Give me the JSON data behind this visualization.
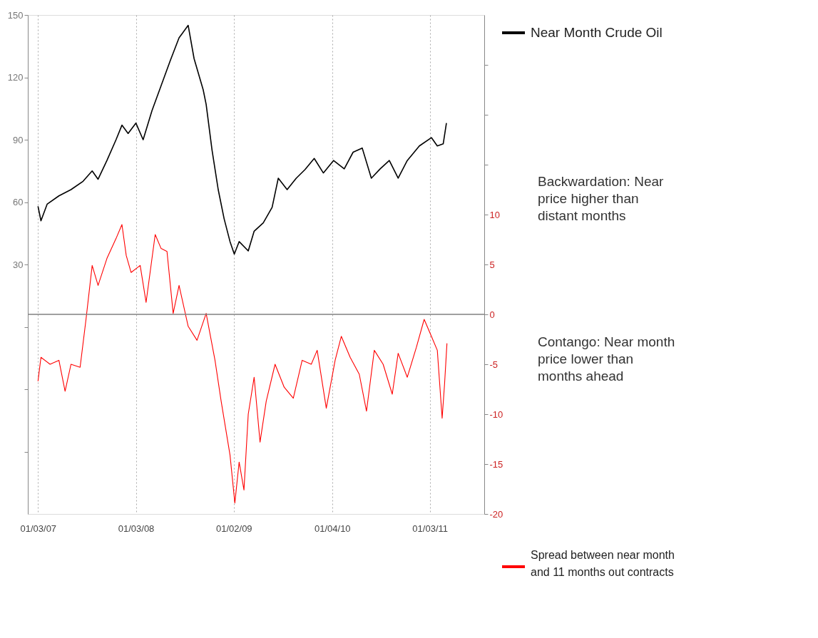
{
  "chart_data": {
    "type": "line",
    "annotations": [
      "Backwardation: Near price higher than distant months",
      "Contango: Near month price lower than months ahead"
    ],
    "xlim": [
      "2006-11-26",
      "2011-07-25"
    ],
    "xticks": [
      {
        "value": "2007-01-03",
        "label": "01/03/07"
      },
      {
        "value": "2008-01-03",
        "label": "01/03/08"
      },
      {
        "value": "2009-01-02",
        "label": "01/02/09"
      },
      {
        "value": "2010-01-04",
        "label": "01/04/10"
      },
      {
        "value": "2011-01-03",
        "label": "01/03/11"
      }
    ],
    "ylim": [
      -90,
      150
    ],
    "yticks": [
      150,
      120,
      90,
      60,
      30,
      {
        "value": 0,
        "label": null
      },
      {
        "value": -30,
        "label": null
      },
      {
        "value": -60,
        "label": null
      }
    ],
    "y2lim": [
      -20,
      30
    ],
    "y2ticks": [
      -20,
      -15,
      -10,
      -5,
      0,
      5,
      10,
      {
        "value": 15,
        "label": null
      },
      {
        "value": 20,
        "label": null
      },
      {
        "value": 25,
        "label": null
      }
    ],
    "series": [
      {
        "name": "Near Month Crude Oil",
        "color": "#000000",
        "x": [
          "2007-01-03",
          "2007-01-14",
          "2007-02-06",
          "2007-03-22",
          "2007-05-06",
          "2007-06-20",
          "2007-07-24",
          "2007-08-15",
          "2007-09-17",
          "2007-10-21",
          "2007-11-12",
          "2007-12-05",
          "2008-01-03",
          "2008-01-30",
          "2008-03-03",
          "2008-04-06",
          "2008-05-10",
          "2008-06-12",
          "2008-07-16",
          "2008-08-07",
          "2008-09-10",
          "2008-09-21",
          "2008-10-13",
          "2008-11-05",
          "2008-11-27",
          "2008-12-19",
          "2009-01-04",
          "2009-01-22",
          "2009-02-25",
          "2009-03-19",
          "2009-04-22",
          "2009-05-25",
          "2009-06-17",
          "2009-07-20",
          "2009-08-23",
          "2009-09-25",
          "2009-10-29",
          "2009-12-02",
          "2010-01-09",
          "2010-02-18",
          "2010-03-23",
          "2010-04-26",
          "2010-05-30",
          "2010-07-02",
          "2010-08-05",
          "2010-09-07",
          "2010-10-11",
          "2010-11-25",
          "2011-01-09",
          "2011-01-31",
          "2011-02-22",
          "2011-03-06"
        ],
        "values": [
          58,
          51,
          59,
          63,
          66,
          70,
          75,
          71,
          80,
          90,
          97,
          93,
          98,
          90,
          104,
          116,
          128,
          139,
          145,
          129,
          114,
          107,
          85,
          66,
          52,
          41,
          35,
          41,
          36.5,
          46,
          50,
          57.5,
          71.5,
          66,
          71.5,
          75.7,
          81,
          74,
          80,
          76,
          84,
          86,
          71.5,
          76,
          80,
          71.5,
          80,
          87,
          91,
          87,
          88,
          98
        ]
      },
      {
        "name": "Spread between near month and 11 months out contracts",
        "color": "#ff0000",
        "axis": "y2",
        "x": [
          "2007-01-03",
          "2007-01-14",
          "2007-02-17",
          "2007-03-22",
          "2007-04-14",
          "2007-05-06",
          "2007-06-09",
          "2007-07-01",
          "2007-07-24",
          "2007-08-15",
          "2007-09-17",
          "2007-10-21",
          "2007-11-12",
          "2007-11-28",
          "2007-12-16",
          "2008-01-19",
          "2008-02-10",
          "2008-03-15",
          "2008-04-06",
          "2008-04-28",
          "2008-05-21",
          "2008-06-12",
          "2008-07-16",
          "2008-08-18",
          "2008-09-21",
          "2008-10-24",
          "2008-11-16",
          "2008-12-19",
          "2009-01-06",
          "2009-01-22",
          "2009-02-09",
          "2009-02-25",
          "2009-03-19",
          "2009-04-10",
          "2009-05-03",
          "2009-06-05",
          "2009-07-09",
          "2009-08-12",
          "2009-09-14",
          "2009-10-18",
          "2009-11-09",
          "2009-12-13",
          "2010-01-15",
          "2010-02-07",
          "2010-03-12",
          "2010-04-15",
          "2010-05-12",
          "2010-06-10",
          "2010-07-13",
          "2010-08-16",
          "2010-09-07",
          "2010-10-11",
          "2010-11-14",
          "2010-12-13",
          "2011-01-09",
          "2011-01-31",
          "2011-02-18",
          "2011-02-27",
          "2011-03-08"
        ],
        "values": [
          -6.7,
          -4.3,
          -5,
          -4.6,
          -7.7,
          -5,
          -5.3,
          -0.5,
          4.9,
          2.9,
          5.6,
          7.6,
          9,
          5.9,
          4.2,
          4.9,
          1.2,
          8,
          6.6,
          6.3,
          0.1,
          2.9,
          -1.2,
          -2.6,
          0.1,
          -4.6,
          -8.7,
          -14.1,
          -18.9,
          -14.8,
          -17.6,
          -10,
          -6.3,
          -12.8,
          -8.7,
          -5,
          -7.3,
          -8.4,
          -4.6,
          -5,
          -3.6,
          -9.4,
          -4.6,
          -2.2,
          -4.3,
          -6,
          -9.7,
          -3.6,
          -5,
          -8,
          -3.9,
          -6.3,
          -3.3,
          -0.5,
          -2.2,
          -3.6,
          -10.4,
          -7,
          -2.9
        ]
      }
    ],
    "ref_lines": [
      {
        "axis": "y2",
        "value": 0,
        "color": "#808080"
      }
    ],
    "grid": "x",
    "legend": "right",
    "line_style": "solid",
    "marker": "none"
  }
}
